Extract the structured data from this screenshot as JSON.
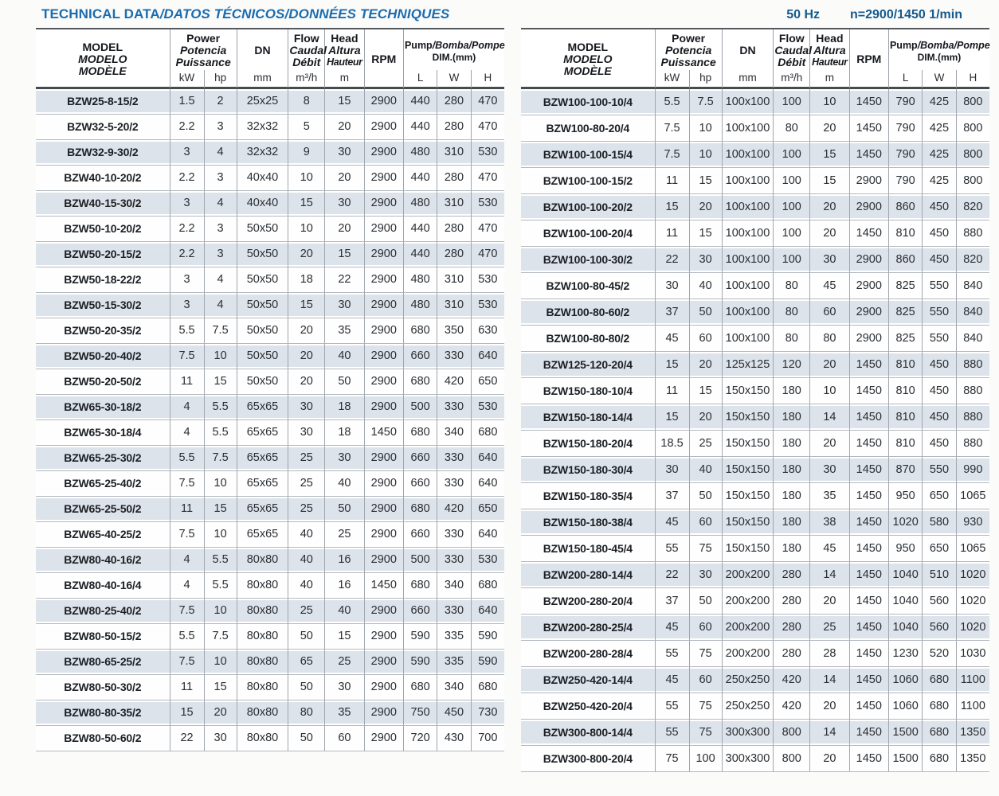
{
  "page": {
    "title_main": "TECHNICAL DATA",
    "title_rest": "/DATOS TÉCNICOS/DONNÉES TECHNIQUES",
    "frequency": "50 Hz",
    "speed": "n=2900/1450 1/min"
  },
  "colors": {
    "title_blue": "#1b6cae",
    "header_navy": "#155a8d",
    "row_shade": "#dde3ea",
    "rule_dark": "#55595e",
    "rule_gray": "#a0a7ae"
  },
  "table_header": {
    "model_lines": [
      "MODEL",
      "MODELO",
      "MODÈLE"
    ],
    "power_lines": [
      "Power",
      "Potencia",
      "Puissance"
    ],
    "power_units": [
      "kW",
      "hp"
    ],
    "dn_label": "DN",
    "dn_unit": "mm",
    "flow_lines": [
      "Flow",
      "Caudal",
      "Débit"
    ],
    "flow_unit": "m³/h",
    "head_lines": [
      "Head",
      "Altura",
      "Hauteur"
    ],
    "head_unit": "m",
    "rpm_label": "RPM",
    "dim_plain": "Pump",
    "dim_italic": "/Bomba/Pompe",
    "dim_sub": "DIM.(mm)",
    "dim_units": [
      "L",
      "W",
      "H"
    ]
  },
  "left_table": {
    "rows": [
      [
        "BZW25-8-15/2",
        "1.5",
        "2",
        "25x25",
        "8",
        "15",
        "2900",
        "440",
        "280",
        "470"
      ],
      [
        "BZW32-5-20/2",
        "2.2",
        "3",
        "32x32",
        "5",
        "20",
        "2900",
        "440",
        "280",
        "470"
      ],
      [
        "BZW32-9-30/2",
        "3",
        "4",
        "32x32",
        "9",
        "30",
        "2900",
        "480",
        "310",
        "530"
      ],
      [
        "BZW40-10-20/2",
        "2.2",
        "3",
        "40x40",
        "10",
        "20",
        "2900",
        "440",
        "280",
        "470"
      ],
      [
        "BZW40-15-30/2",
        "3",
        "4",
        "40x40",
        "15",
        "30",
        "2900",
        "480",
        "310",
        "530"
      ],
      [
        "BZW50-10-20/2",
        "2.2",
        "3",
        "50x50",
        "10",
        "20",
        "2900",
        "440",
        "280",
        "470"
      ],
      [
        "BZW50-20-15/2",
        "2.2",
        "3",
        "50x50",
        "20",
        "15",
        "2900",
        "440",
        "280",
        "470"
      ],
      [
        "BZW50-18-22/2",
        "3",
        "4",
        "50x50",
        "18",
        "22",
        "2900",
        "480",
        "310",
        "530"
      ],
      [
        "BZW50-15-30/2",
        "3",
        "4",
        "50x50",
        "15",
        "30",
        "2900",
        "480",
        "310",
        "530"
      ],
      [
        "BZW50-20-35/2",
        "5.5",
        "7.5",
        "50x50",
        "20",
        "35",
        "2900",
        "680",
        "350",
        "630"
      ],
      [
        "BZW50-20-40/2",
        "7.5",
        "10",
        "50x50",
        "20",
        "40",
        "2900",
        "660",
        "330",
        "640"
      ],
      [
        "BZW50-20-50/2",
        "11",
        "15",
        "50x50",
        "20",
        "50",
        "2900",
        "680",
        "420",
        "650"
      ],
      [
        "BZW65-30-18/2",
        "4",
        "5.5",
        "65x65",
        "30",
        "18",
        "2900",
        "500",
        "330",
        "530"
      ],
      [
        "BZW65-30-18/4",
        "4",
        "5.5",
        "65x65",
        "30",
        "18",
        "1450",
        "680",
        "340",
        "680"
      ],
      [
        "BZW65-25-30/2",
        "5.5",
        "7.5",
        "65x65",
        "25",
        "30",
        "2900",
        "660",
        "330",
        "640"
      ],
      [
        "BZW65-25-40/2",
        "7.5",
        "10",
        "65x65",
        "25",
        "40",
        "2900",
        "660",
        "330",
        "640"
      ],
      [
        "BZW65-25-50/2",
        "11",
        "15",
        "65x65",
        "25",
        "50",
        "2900",
        "680",
        "420",
        "650"
      ],
      [
        "BZW65-40-25/2",
        "7.5",
        "10",
        "65x65",
        "40",
        "25",
        "2900",
        "660",
        "330",
        "640"
      ],
      [
        "BZW80-40-16/2",
        "4",
        "5.5",
        "80x80",
        "40",
        "16",
        "2900",
        "500",
        "330",
        "530"
      ],
      [
        "BZW80-40-16/4",
        "4",
        "5.5",
        "80x80",
        "40",
        "16",
        "1450",
        "680",
        "340",
        "680"
      ],
      [
        "BZW80-25-40/2",
        "7.5",
        "10",
        "80x80",
        "25",
        "40",
        "2900",
        "660",
        "330",
        "640"
      ],
      [
        "BZW80-50-15/2",
        "5.5",
        "7.5",
        "80x80",
        "50",
        "15",
        "2900",
        "590",
        "335",
        "590"
      ],
      [
        "BZW80-65-25/2",
        "7.5",
        "10",
        "80x80",
        "65",
        "25",
        "2900",
        "590",
        "335",
        "590"
      ],
      [
        "BZW80-50-30/2",
        "11",
        "15",
        "80x80",
        "50",
        "30",
        "2900",
        "680",
        "340",
        "680"
      ],
      [
        "BZW80-80-35/2",
        "15",
        "20",
        "80x80",
        "80",
        "35",
        "2900",
        "750",
        "450",
        "730"
      ],
      [
        "BZW80-50-60/2",
        "22",
        "30",
        "80x80",
        "50",
        "60",
        "2900",
        "720",
        "430",
        "700"
      ]
    ]
  },
  "right_table": {
    "rows": [
      [
        "BZW100-100-10/4",
        "5.5",
        "7.5",
        "100x100",
        "100",
        "10",
        "1450",
        "790",
        "425",
        "800"
      ],
      [
        "BZW100-80-20/4",
        "7.5",
        "10",
        "100x100",
        "80",
        "20",
        "1450",
        "790",
        "425",
        "800"
      ],
      [
        "BZW100-100-15/4",
        "7.5",
        "10",
        "100x100",
        "100",
        "15",
        "1450",
        "790",
        "425",
        "800"
      ],
      [
        "BZW100-100-15/2",
        "11",
        "15",
        "100x100",
        "100",
        "15",
        "2900",
        "790",
        "425",
        "800"
      ],
      [
        "BZW100-100-20/2",
        "15",
        "20",
        "100x100",
        "100",
        "20",
        "2900",
        "860",
        "450",
        "820"
      ],
      [
        "BZW100-100-20/4",
        "11",
        "15",
        "100x100",
        "100",
        "20",
        "1450",
        "810",
        "450",
        "880"
      ],
      [
        "BZW100-100-30/2",
        "22",
        "30",
        "100x100",
        "100",
        "30",
        "2900",
        "860",
        "450",
        "820"
      ],
      [
        "BZW100-80-45/2",
        "30",
        "40",
        "100x100",
        "80",
        "45",
        "2900",
        "825",
        "550",
        "840"
      ],
      [
        "BZW100-80-60/2",
        "37",
        "50",
        "100x100",
        "80",
        "60",
        "2900",
        "825",
        "550",
        "840"
      ],
      [
        "BZW100-80-80/2",
        "45",
        "60",
        "100x100",
        "80",
        "80",
        "2900",
        "825",
        "550",
        "840"
      ],
      [
        "BZW125-120-20/4",
        "15",
        "20",
        "125x125",
        "120",
        "20",
        "1450",
        "810",
        "450",
        "880"
      ],
      [
        "BZW150-180-10/4",
        "11",
        "15",
        "150x150",
        "180",
        "10",
        "1450",
        "810",
        "450",
        "880"
      ],
      [
        "BZW150-180-14/4",
        "15",
        "20",
        "150x150",
        "180",
        "14",
        "1450",
        "810",
        "450",
        "880"
      ],
      [
        "BZW150-180-20/4",
        "18.5",
        "25",
        "150x150",
        "180",
        "20",
        "1450",
        "810",
        "450",
        "880"
      ],
      [
        "BZW150-180-30/4",
        "30",
        "40",
        "150x150",
        "180",
        "30",
        "1450",
        "870",
        "550",
        "990"
      ],
      [
        "BZW150-180-35/4",
        "37",
        "50",
        "150x150",
        "180",
        "35",
        "1450",
        "950",
        "650",
        "1065"
      ],
      [
        "BZW150-180-38/4",
        "45",
        "60",
        "150x150",
        "180",
        "38",
        "1450",
        "1020",
        "580",
        "930"
      ],
      [
        "BZW150-180-45/4",
        "55",
        "75",
        "150x150",
        "180",
        "45",
        "1450",
        "950",
        "650",
        "1065"
      ],
      [
        "BZW200-280-14/4",
        "22",
        "30",
        "200x200",
        "280",
        "14",
        "1450",
        "1040",
        "510",
        "1020"
      ],
      [
        "BZW200-280-20/4",
        "37",
        "50",
        "200x200",
        "280",
        "20",
        "1450",
        "1040",
        "560",
        "1020"
      ],
      [
        "BZW200-280-25/4",
        "45",
        "60",
        "200x200",
        "280",
        "25",
        "1450",
        "1040",
        "560",
        "1020"
      ],
      [
        "BZW200-280-28/4",
        "55",
        "75",
        "200x200",
        "280",
        "28",
        "1450",
        "1230",
        "520",
        "1030"
      ],
      [
        "BZW250-420-14/4",
        "45",
        "60",
        "250x250",
        "420",
        "14",
        "1450",
        "1060",
        "680",
        "1100"
      ],
      [
        "BZW250-420-20/4",
        "55",
        "75",
        "250x250",
        "420",
        "20",
        "1450",
        "1060",
        "680",
        "1100"
      ],
      [
        "BZW300-800-14/4",
        "55",
        "75",
        "300x300",
        "800",
        "14",
        "1450",
        "1500",
        "680",
        "1350"
      ],
      [
        "BZW300-800-20/4",
        "75",
        "100",
        "300x300",
        "800",
        "20",
        "1450",
        "1500",
        "680",
        "1350"
      ]
    ]
  }
}
